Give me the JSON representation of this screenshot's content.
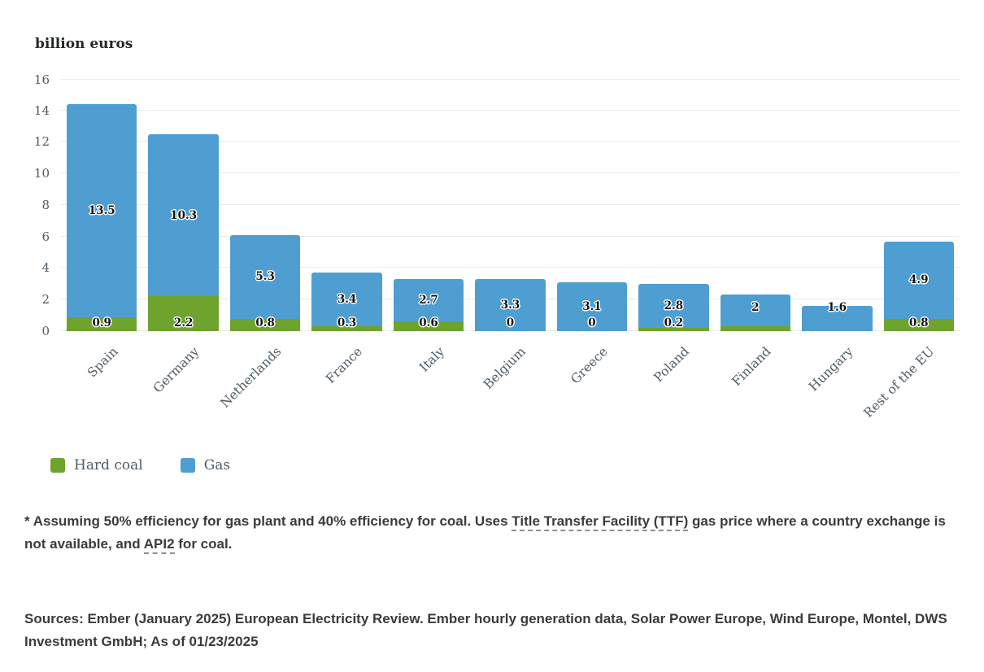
{
  "chart_data": {
    "type": "bar",
    "stacked": true,
    "title": "billion euros",
    "categories": [
      "Spain",
      "Germany",
      "Netherlands",
      "France",
      "Italy",
      "Belgium",
      "Greece",
      "Poland",
      "Finland",
      "Hungary",
      "Rest of the EU"
    ],
    "series": [
      {
        "name": "Hard coal",
        "color": "#6ea32e",
        "values": [
          0.9,
          2.2,
          0.8,
          0.3,
          0.6,
          0,
          0,
          0.2,
          0.3,
          0,
          0.8
        ],
        "labels": [
          "0.9",
          "2.2",
          "0.8",
          "0.3",
          "0.6",
          "0",
          "0",
          "0.2",
          "",
          "",
          "0.8"
        ]
      },
      {
        "name": "Gas",
        "color": "#4f9ed2",
        "values": [
          13.5,
          10.3,
          5.3,
          3.4,
          2.7,
          3.3,
          3.1,
          2.8,
          2,
          1.6,
          4.9
        ],
        "labels": [
          "13.5",
          "10.3",
          "5.3",
          "3.4",
          "2.7",
          "3.3",
          "3.1",
          "2.8",
          "2",
          "1.6",
          "4.9"
        ]
      }
    ],
    "ylim": [
      0,
      16
    ],
    "y_ticks": [
      0,
      2,
      4,
      6,
      8,
      10,
      12,
      14,
      16
    ],
    "grid": true,
    "legend_position": "bottom-left"
  },
  "footnote": {
    "parts": [
      {
        "text": "* Assuming 50% efficiency for gas plant and 40% efficiency for coal. Uses ",
        "underline": false
      },
      {
        "text": "Title Transfer Facility (TTF)",
        "underline": true
      },
      {
        "text": "  gas price where a country exchange is not available, and ",
        "underline": false
      },
      {
        "text": "API2",
        "underline": true
      },
      {
        "text": " for coal.",
        "underline": false
      }
    ]
  },
  "sources": {
    "text": "Sources: Ember (January 2025) European Electricity Review. Ember hourly generation data, Solar Power Europe, Wind Europe, Montel, DWS Investment GmbH; As of 01/23/2025"
  }
}
